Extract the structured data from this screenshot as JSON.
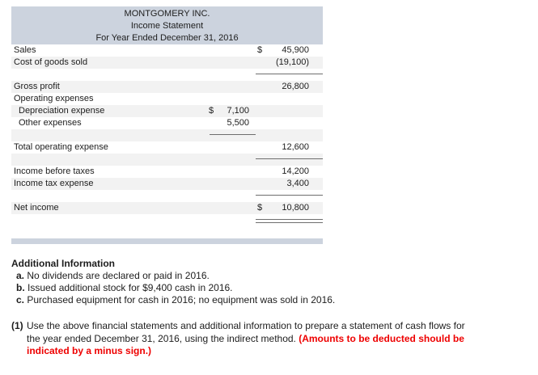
{
  "colors": {
    "header_band": "#ccd3de",
    "row_stripe": "#f2f2f2",
    "rule_gray": "#6e6e6e",
    "text": "#1d1d1d",
    "warning_red": "#ee0000"
  },
  "statement": {
    "title_lines": [
      "MONTGOMERY INC.",
      "Income Statement",
      "For Year Ended December 31, 2016"
    ],
    "rows": [
      {
        "label": "Sales",
        "right_cur": "$",
        "right_amt": "45,900"
      },
      {
        "label": "Cost of goods sold",
        "right_amt": "(19,100)"
      },
      {
        "rule": "right"
      },
      {
        "label": "Gross profit",
        "right_amt": "26,800"
      },
      {
        "label": "Operating expenses"
      },
      {
        "label": "Depreciation expense",
        "mid_cur": "$",
        "mid_amt": "7,100"
      },
      {
        "label": "Other expenses",
        "mid_amt": "5,500"
      },
      {
        "rule": "mid"
      },
      {
        "label": "Total operating expense",
        "right_amt": "12,600"
      },
      {
        "rule": "right"
      },
      {
        "label": "Income before taxes",
        "right_amt": "14,200"
      },
      {
        "label": "Income tax expense",
        "right_amt": "3,400"
      },
      {
        "rule": "right"
      },
      {
        "label": "Net income",
        "right_cur": "$",
        "right_amt": "10,800"
      },
      {
        "rule": "right-double"
      },
      {}
    ]
  },
  "additional_info": {
    "heading": "Additional Information",
    "items": [
      {
        "label": "a.",
        "text": " No dividends are declared or paid in 2016."
      },
      {
        "label": "b.",
        "text": " Issued additional stock for $9,400 cash in 2016."
      },
      {
        "label": "c.",
        "text": " Purchased equipment for cash in 2016; no equipment was sold in 2016."
      }
    ]
  },
  "instruction": {
    "number": "(1)",
    "lines": [
      [
        {
          "text": "Use the above financial statements and additional information to prepare a statement of cash flows for"
        }
      ],
      [
        {
          "text": "the year ended December 31, 2016, using the indirect method. "
        },
        {
          "text": "(Amounts to be deducted should be",
          "red": true
        }
      ],
      [
        {
          "text": "indicated by a minus sign.)",
          "red": true
        }
      ]
    ]
  }
}
